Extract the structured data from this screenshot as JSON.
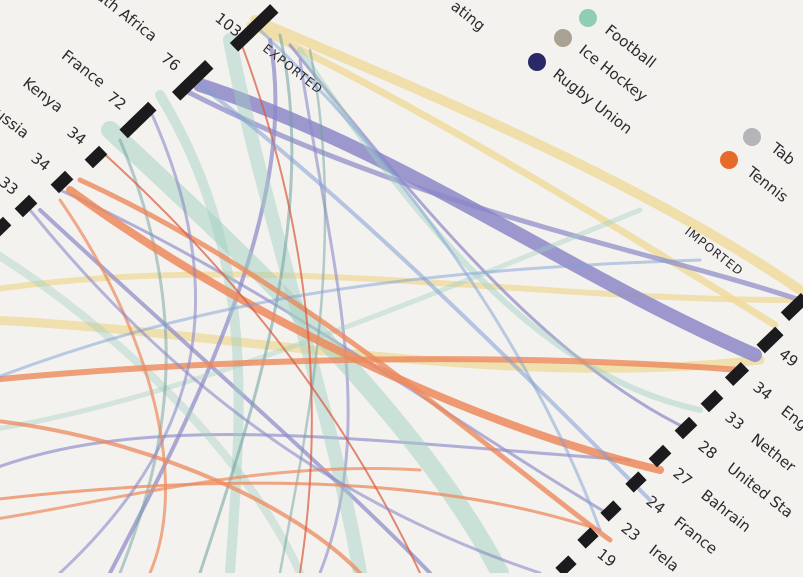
{
  "diagram": {
    "top_fragment": "ating",
    "exported_label": "EXPORTED",
    "imported_label": "IMPORTED",
    "exporters": [
      {
        "name": "South Africa",
        "count": "103"
      },
      {
        "name": "France",
        "count": "76"
      },
      {
        "name": "Kenya",
        "count": "72"
      },
      {
        "name": "Russia",
        "count": "34"
      },
      {
        "name": "",
        "count": "34"
      },
      {
        "name": "",
        "count": "33"
      }
    ],
    "importers": [
      {
        "count": "49",
        "name": ""
      },
      {
        "count": "34",
        "name": "Eng"
      },
      {
        "count": "33",
        "name": "Nether"
      },
      {
        "count": "28",
        "name": "United Sta"
      },
      {
        "count": "27",
        "name": "Bahrain"
      },
      {
        "count": "24",
        "name": "France"
      },
      {
        "count": "23",
        "name": "Irela"
      },
      {
        "count": "19",
        "name": ""
      }
    ],
    "legend": [
      {
        "label": "Football",
        "color": "#8fcdb4"
      },
      {
        "label": "Ice Hockey",
        "color": "#aba294"
      },
      {
        "label": "Rugby Union",
        "color": "#2a2868"
      },
      {
        "label": "Tab",
        "color": "#b5b4b8"
      },
      {
        "label": "Tennis",
        "color": "#e76a2b"
      }
    ],
    "flow_colors": {
      "sailing": "#f0d99a",
      "rugby": "#8c88c7",
      "football": "#9fcfc0",
      "tennis": "#ec8a5c",
      "teal": "#6f9fa0",
      "blue": "#7f9fd6",
      "red": "#d85a3c"
    }
  }
}
